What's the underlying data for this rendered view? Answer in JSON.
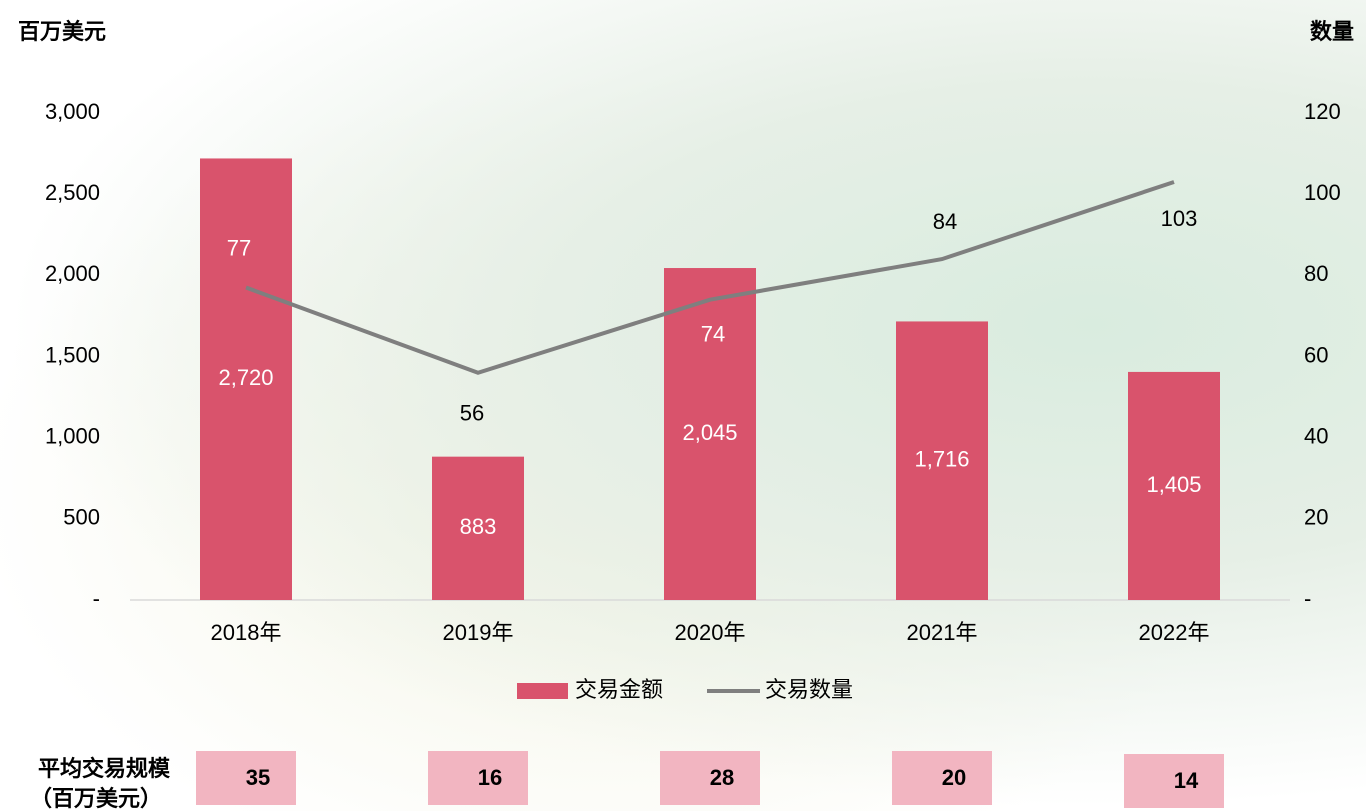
{
  "chart_data": {
    "type": "bar_line",
    "y_axis_title": "百万美元",
    "y2_axis_title": "数量",
    "categories": [
      "2018年",
      "2019年",
      "2020年",
      "2021年",
      "2022年"
    ],
    "series": [
      {
        "name": "交易金额",
        "type": "bar",
        "color": "#d9536c",
        "values": [
          2720,
          883,
          2045,
          1716,
          1405
        ],
        "value_labels": [
          "2,720",
          "883",
          "2,045",
          "1,716",
          "1,405"
        ]
      },
      {
        "name": "交易数量",
        "type": "line",
        "axis": "y2",
        "color": "#7f7f7f",
        "values": [
          77,
          56,
          74,
          84,
          103
        ]
      }
    ],
    "ylim": [
      0,
      3000
    ],
    "yticks": [
      {
        "value": 0,
        "label": "-"
      },
      500,
      {
        "value": 1000,
        "label": "1,000"
      },
      {
        "value": 1500,
        "label": "1,500"
      },
      {
        "value": 2000,
        "label": "2,000"
      },
      {
        "value": 2500,
        "label": "2,500"
      },
      {
        "value": 3000,
        "label": "3,000"
      }
    ],
    "y2lim": [
      0,
      120
    ],
    "y2ticks": [
      {
        "value": 0,
        "label": "-"
      },
      20,
      40,
      60,
      80,
      100,
      120
    ],
    "legend": "bottom"
  },
  "average_deal_size": {
    "label_lines": [
      "平均交易规模",
      "（百万美元）"
    ],
    "values": [
      35,
      16,
      28,
      20,
      14
    ],
    "color": "#f2b5c1"
  }
}
